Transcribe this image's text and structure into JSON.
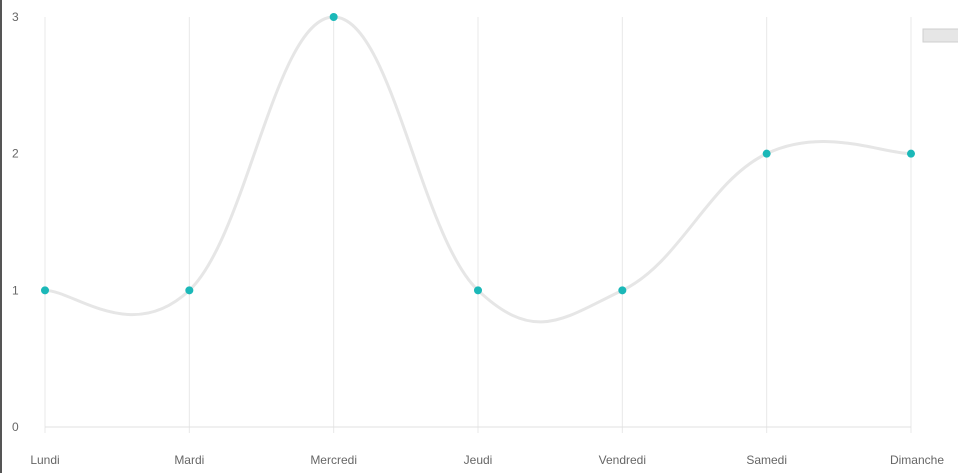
{
  "chart_data": {
    "type": "line",
    "title": "",
    "xlabel": "",
    "ylabel": "",
    "categories": [
      "Lundi",
      "Mardi",
      "Mercredi",
      "Jeudi",
      "Vendredi",
      "Samedi",
      "Dimanche"
    ],
    "series": [
      {
        "values": [
          1,
          1,
          3,
          1,
          1,
          2,
          2
        ],
        "line_color": "#e6e6e6",
        "point_color": "#1bb8b8"
      }
    ],
    "ylim": [
      0,
      3
    ],
    "yticks": [
      "0",
      "1",
      "2",
      "3"
    ],
    "grid": {
      "vertical": true,
      "horizontal": false,
      "color": "#e8e8e8"
    },
    "legend": {
      "position": "top-right",
      "swatch_color": "#e6e6e6"
    }
  }
}
